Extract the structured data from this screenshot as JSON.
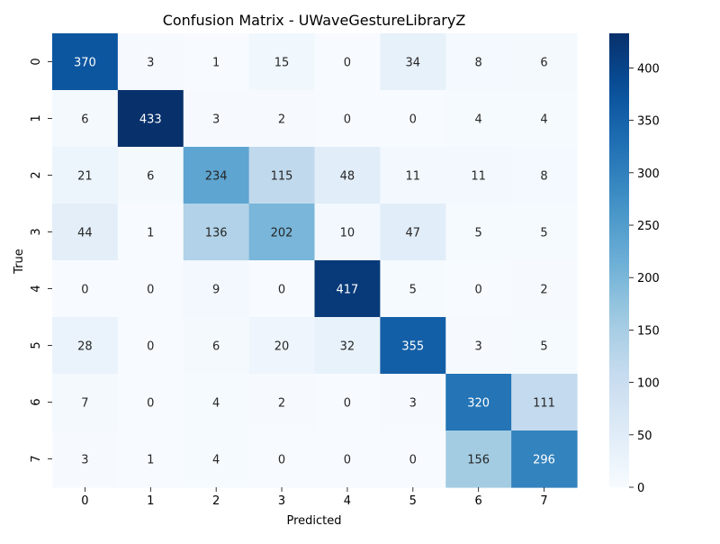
{
  "chart_data": {
    "type": "heatmap",
    "title": "Confusion Matrix - UWaveGestureLibraryZ",
    "xlabel": "Predicted",
    "ylabel": "True",
    "x_categories": [
      "0",
      "1",
      "2",
      "3",
      "4",
      "5",
      "6",
      "7"
    ],
    "y_categories": [
      "0",
      "1",
      "2",
      "3",
      "4",
      "5",
      "6",
      "7"
    ],
    "values": [
      [
        370,
        3,
        1,
        15,
        0,
        34,
        8,
        6
      ],
      [
        6,
        433,
        3,
        2,
        0,
        0,
        4,
        4
      ],
      [
        21,
        6,
        234,
        115,
        48,
        11,
        11,
        8
      ],
      [
        44,
        1,
        136,
        202,
        10,
        47,
        5,
        5
      ],
      [
        0,
        0,
        9,
        0,
        417,
        5,
        0,
        2
      ],
      [
        28,
        0,
        6,
        20,
        32,
        355,
        3,
        5
      ],
      [
        7,
        0,
        4,
        2,
        0,
        3,
        320,
        111
      ],
      [
        3,
        1,
        4,
        0,
        0,
        0,
        156,
        296
      ]
    ],
    "colorbar": {
      "min": 0,
      "max": 433,
      "ticks": [
        0,
        50,
        100,
        150,
        200,
        250,
        300,
        350,
        400
      ],
      "colormap": "Blues"
    }
  }
}
